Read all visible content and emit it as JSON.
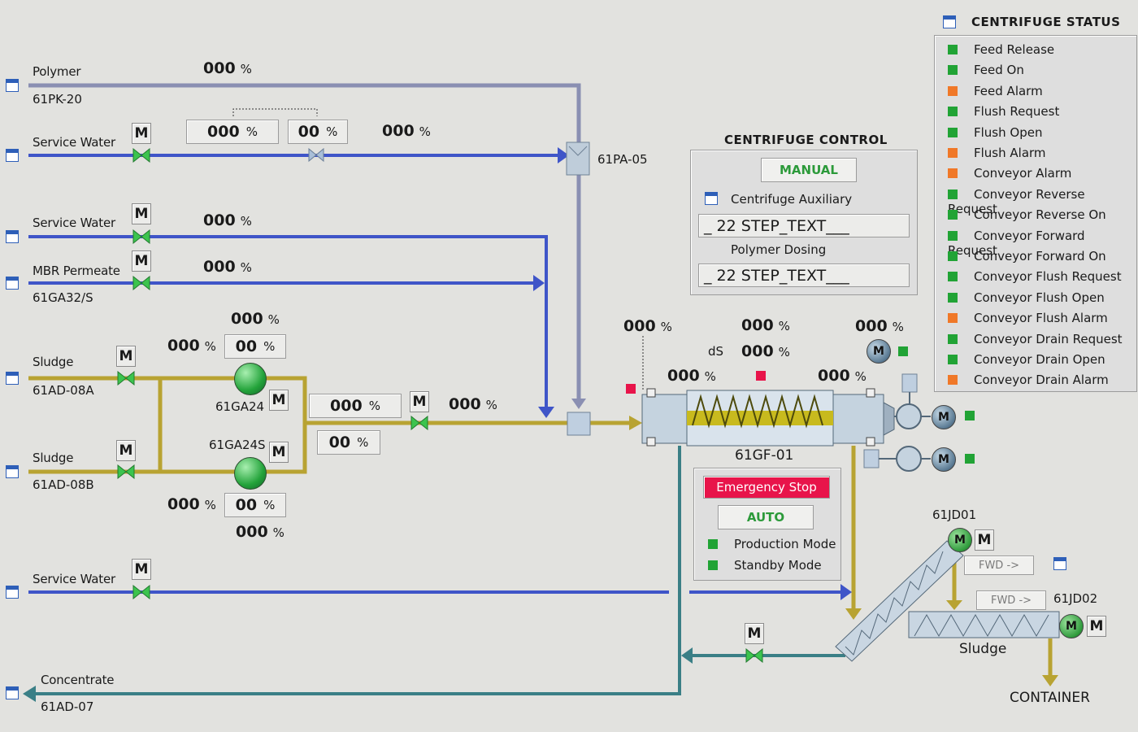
{
  "units": {
    "pct": "%"
  },
  "lines": {
    "polymer": {
      "label": "Polymer",
      "tag": "61PK-20",
      "value": "000"
    },
    "service_water_1": {
      "label": "Service Water",
      "value_a": "000",
      "value_b": "00",
      "value_c": "000"
    },
    "pa05_tag": "61PA-05",
    "service_water_2": {
      "label": "Service Water",
      "value": "000"
    },
    "mbr_permeate": {
      "label": "MBR Permeate",
      "tag": "61GA32/S",
      "value": "000"
    },
    "sludge_a": {
      "label": "Sludge",
      "tag": "61AD-08A"
    },
    "sludge_b": {
      "label": "Sludge",
      "tag": "61AD-08B"
    },
    "service_water_3": {
      "label": "Service Water"
    },
    "concentrate": {
      "label": "Concentrate",
      "tag": "61AD-07"
    }
  },
  "pumps": {
    "ga24": {
      "tag": "61GA24",
      "value_top": "000",
      "value_left": "000",
      "value_box": "00"
    },
    "ga24s": {
      "tag": "61GA24S",
      "value_left": "000",
      "value_box": "00",
      "value_bottom": "000"
    }
  },
  "feed": {
    "value_box_a": "000",
    "value_box_b": "00",
    "value_right": "000"
  },
  "centrifuge": {
    "tag": "61GF-01",
    "values": {
      "left_top": "000",
      "mid_top": "000",
      "ds_label": "dS",
      "ds_value": "000",
      "right_top": "000",
      "left_low": "000",
      "right_low": "000"
    }
  },
  "control": {
    "title": "CENTRIFUGE  CONTROL",
    "manual_label": "MANUAL",
    "aux_label": "Centrifuge Auxiliary",
    "step_text_1": "_ 22 STEP_TEXT___",
    "polymer_label": "Polymer Dosing",
    "step_text_2": "_ 22 STEP_TEXT___"
  },
  "mode_panel": {
    "estop_label": "Emergency Stop",
    "auto_label": "AUTO",
    "production_label": "Production Mode",
    "standby_label": "Standby Mode"
  },
  "conveyors": {
    "jd01": {
      "tag": "61JD01",
      "dir_label": "FWD ->"
    },
    "jd02": {
      "tag": "61JD02",
      "dir_label": "FWD ->"
    },
    "sludge_label": "Sludge",
    "container_label": "CONTAINER"
  },
  "motor_label": "M",
  "status": {
    "title": "CENTRIFUGE STATUS",
    "items": [
      {
        "label": "Feed Release",
        "state": "green"
      },
      {
        "label": "Feed On",
        "state": "green"
      },
      {
        "label": "Feed Alarm",
        "state": "orange"
      },
      {
        "label": "Flush Request",
        "state": "green"
      },
      {
        "label": "Flush Open",
        "state": "green"
      },
      {
        "label": "Flush Alarm",
        "state": "orange"
      },
      {
        "label": "Conveyor Alarm",
        "state": "orange"
      },
      {
        "label": "Conveyor Reverse Request",
        "state": "green"
      },
      {
        "label": "Conveyor Reverse On",
        "state": "green"
      },
      {
        "label": "Conveyor Forward Request",
        "state": "green"
      },
      {
        "label": "Conveyor Forward On",
        "state": "green"
      },
      {
        "label": "Conveyor Flush Request",
        "state": "green"
      },
      {
        "label": "Conveyor Flush Open",
        "state": "green"
      },
      {
        "label": "Conveyor Flush Alarm",
        "state": "orange"
      },
      {
        "label": "Conveyor Drain Request",
        "state": "green"
      },
      {
        "label": "Conveyor Drain Open",
        "state": "green"
      },
      {
        "label": "Conveyor Drain Alarm",
        "state": "orange"
      }
    ]
  },
  "colors": {
    "blue": "#3f55c8",
    "gray": "#8a8fb2",
    "sludge": "#b8a332",
    "concentrate": "#3a7f86",
    "green": "#21a335",
    "orange": "#f07828",
    "red": "#e8144a"
  }
}
